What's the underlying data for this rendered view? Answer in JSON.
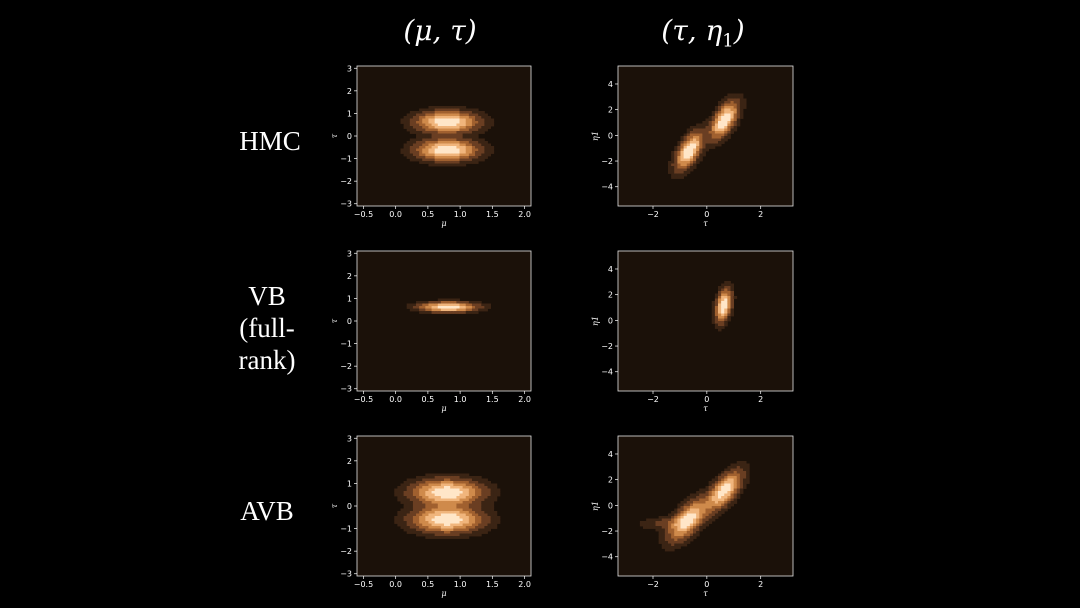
{
  "column_titles": {
    "col1": {
      "open": "(μ, τ)"
    },
    "col2": {
      "main": "(τ, η",
      "sub": "1",
      "close": ")"
    }
  },
  "row_labels": {
    "hmc": [
      "HMC"
    ],
    "vb": [
      "VB",
      "(full-",
      "rank)"
    ],
    "avb": [
      "AVB"
    ]
  },
  "colors": {
    "background": "#000000",
    "plot_background": "#1b1109",
    "frame": "#e6e6e6",
    "colormap": [
      "#1b1109",
      "#3b2414",
      "#6a3e22",
      "#a0602f",
      "#cf8a4b",
      "#f0b57c",
      "#ffe6c8"
    ]
  },
  "chart_data": [
    {
      "id": "hmc-mu-tau",
      "type": "contour",
      "row": "HMC",
      "xlabel": "μ",
      "ylabel": "τ",
      "xlim": [
        -0.6,
        2.1
      ],
      "ylim": [
        -3.1,
        3.1
      ],
      "xticks": [
        -0.5,
        0.0,
        0.5,
        1.0,
        1.5,
        2.0
      ],
      "xtick_labels": [
        "−0.5",
        "0.0",
        "0.5",
        "1.0",
        "1.5",
        "2.0"
      ],
      "yticks": [
        -3,
        -2,
        -1,
        0,
        1,
        2,
        3
      ],
      "ytick_labels": [
        "−3",
        "−2",
        "−1",
        "0",
        "1",
        "2",
        "3"
      ],
      "modes": [
        {
          "mx": 0.8,
          "my": 0.62,
          "sx": 0.28,
          "sy": 0.28,
          "rho": 0.0,
          "w": 1
        },
        {
          "mx": 0.8,
          "my": -0.62,
          "sx": 0.28,
          "sy": 0.28,
          "rho": 0.0,
          "w": 1
        }
      ]
    },
    {
      "id": "hmc-tau-eta1",
      "type": "contour",
      "row": "HMC",
      "xlabel": "τ",
      "ylabel": "η1",
      "xlim": [
        -3.3,
        3.2
      ],
      "ylim": [
        -5.5,
        5.4
      ],
      "xticks": [
        -2,
        0,
        2
      ],
      "xtick_labels": [
        "−2",
        "0",
        "2"
      ],
      "yticks": [
        -4,
        -2,
        0,
        2,
        4
      ],
      "ytick_labels": [
        "−4",
        "−2",
        "0",
        "2",
        "4"
      ],
      "modes": [
        {
          "mx": 0.65,
          "my": 1.2,
          "sx": 0.3,
          "sy": 0.85,
          "rho": 0.6,
          "w": 1
        },
        {
          "mx": -0.65,
          "my": -1.2,
          "sx": 0.3,
          "sy": 0.85,
          "rho": 0.6,
          "w": 1
        }
      ]
    },
    {
      "id": "vb-mu-tau",
      "type": "contour",
      "row": "VB (full-rank)",
      "xlabel": "μ",
      "ylabel": "τ",
      "xlim": [
        -0.6,
        2.1
      ],
      "ylim": [
        -3.1,
        3.1
      ],
      "xticks": [
        -0.5,
        0.0,
        0.5,
        1.0,
        1.5,
        2.0
      ],
      "xtick_labels": [
        "−0.5",
        "0.0",
        "0.5",
        "1.0",
        "1.5",
        "2.0"
      ],
      "yticks": [
        -3,
        -2,
        -1,
        0,
        1,
        2,
        3
      ],
      "ytick_labels": [
        "−3",
        "−2",
        "−1",
        "0",
        "1",
        "2",
        "3"
      ],
      "modes": [
        {
          "mx": 0.82,
          "my": 0.62,
          "sx": 0.26,
          "sy": 0.13,
          "rho": 0.0,
          "w": 1
        }
      ]
    },
    {
      "id": "vb-tau-eta1",
      "type": "contour",
      "row": "VB (full-rank)",
      "xlabel": "τ",
      "ylabel": "η1",
      "xlim": [
        -3.3,
        3.2
      ],
      "ylim": [
        -5.5,
        5.4
      ],
      "xticks": [
        -2,
        0,
        2
      ],
      "xtick_labels": [
        "−2",
        "0",
        "2"
      ],
      "yticks": [
        -4,
        -2,
        0,
        2,
        4
      ],
      "ytick_labels": [
        "−4",
        "−2",
        "0",
        "2",
        "4"
      ],
      "modes": [
        {
          "mx": 0.62,
          "my": 1.15,
          "sx": 0.17,
          "sy": 0.75,
          "rho": 0.35,
          "w": 1
        }
      ]
    },
    {
      "id": "avb-mu-tau",
      "type": "contour",
      "row": "AVB",
      "xlabel": "μ",
      "ylabel": "τ",
      "xlim": [
        -0.6,
        2.1
      ],
      "ylim": [
        -3.1,
        3.1
      ],
      "xticks": [
        -0.5,
        0.0,
        0.5,
        1.0,
        1.5,
        2.0
      ],
      "xtick_labels": [
        "−0.5",
        "0.0",
        "0.5",
        "1.0",
        "1.5",
        "2.0"
      ],
      "yticks": [
        -3,
        -2,
        -1,
        0,
        1,
        2,
        3
      ],
      "ytick_labels": [
        "−3",
        "−2",
        "−1",
        "0",
        "1",
        "2",
        "3"
      ],
      "modes": [
        {
          "mx": 0.8,
          "my": 0.6,
          "sx": 0.32,
          "sy": 0.34,
          "rho": 0.0,
          "w": 1
        },
        {
          "mx": 0.8,
          "my": -0.6,
          "sx": 0.32,
          "sy": 0.34,
          "rho": 0.0,
          "w": 1
        }
      ]
    },
    {
      "id": "avb-tau-eta1",
      "type": "contour",
      "row": "AVB",
      "xlabel": "τ",
      "ylabel": "η1",
      "xlim": [
        -3.3,
        3.2
      ],
      "ylim": [
        -5.5,
        5.4
      ],
      "xticks": [
        -2,
        0,
        2
      ],
      "xtick_labels": [
        "−2",
        "0",
        "2"
      ],
      "yticks": [
        -4,
        -2,
        0,
        2,
        4
      ],
      "ytick_labels": [
        "−4",
        "−2",
        "0",
        "2",
        "4"
      ],
      "modes": [
        {
          "mx": 0.65,
          "my": 1.15,
          "sx": 0.38,
          "sy": 0.9,
          "rho": 0.65,
          "w": 1
        },
        {
          "mx": -0.7,
          "my": -1.15,
          "sx": 0.42,
          "sy": 0.95,
          "rho": 0.65,
          "w": 1
        },
        {
          "mx": -1.5,
          "my": -1.35,
          "sx": 0.6,
          "sy": 0.3,
          "rho": 0.3,
          "w": 0.18
        }
      ]
    }
  ]
}
